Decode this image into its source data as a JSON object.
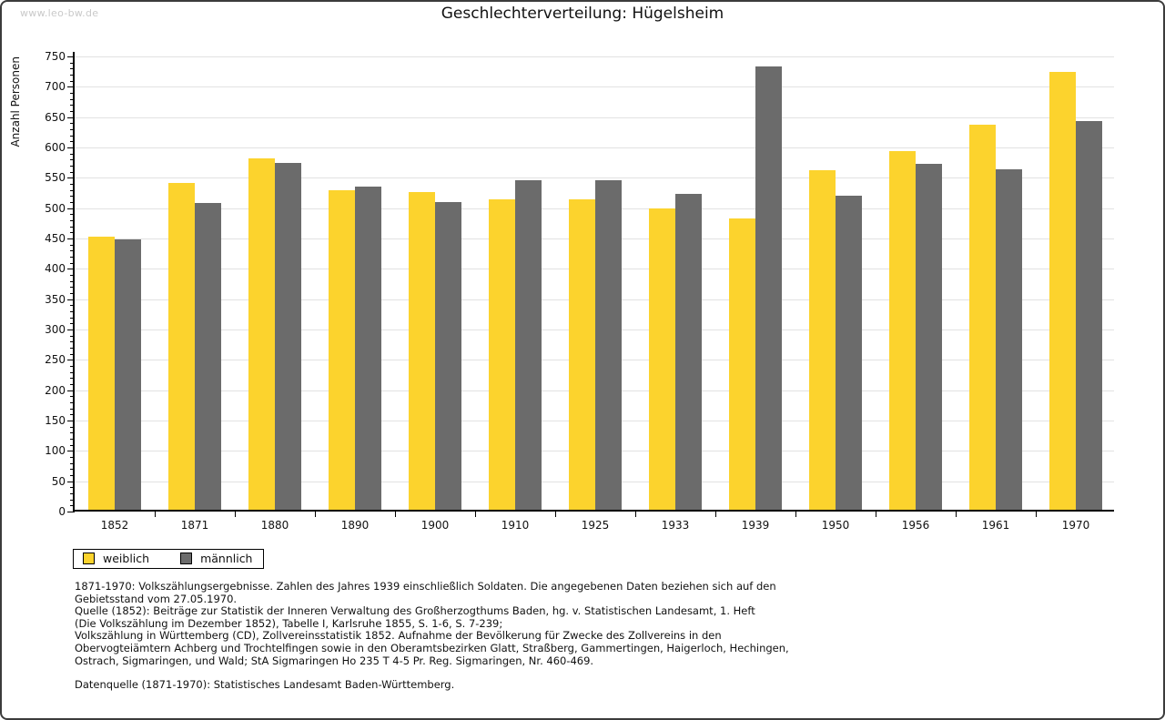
{
  "watermark": "www.leo-bw.de",
  "chart_data": {
    "type": "bar",
    "title": "Geschlechterverteilung: Hügelsheim",
    "xlabel": "",
    "ylabel": "Anzahl Personen",
    "ylim": [
      0,
      750
    ],
    "ytick_step": 50,
    "ytick_minor_step": 10,
    "grid": true,
    "legend_position": "bottom-left",
    "categories": [
      "1852",
      "1871",
      "1880",
      "1890",
      "1900",
      "1910",
      "1925",
      "1933",
      "1939",
      "1950",
      "1956",
      "1961",
      "1970"
    ],
    "series": [
      {
        "name": "weiblich",
        "color": "#fcd32d",
        "values": [
          450,
          538,
          579,
          526,
          524,
          511,
          511,
          496,
          480,
          560,
          591,
          635,
          721
        ]
      },
      {
        "name": "männlich",
        "color": "#6b6b6b",
        "values": [
          446,
          505,
          571,
          532,
          507,
          543,
          543,
          520,
          731,
          517,
          570,
          561,
          640
        ]
      }
    ]
  },
  "footnote_lines": [
    "1871-1970: Volkszählungsergebnisse. Zahlen des Jahres 1939 einschließlich Soldaten. Die angegebenen Daten beziehen sich auf den",
    "Gebietsstand vom 27.05.1970.",
    "Quelle (1852): Beiträge zur Statistik der Inneren Verwaltung des Großherzogthums Baden, hg. v. Statistischen Landesamt, 1. Heft",
    "(Die Volkszählung im Dezember 1852), Tabelle I, Karlsruhe 1855, S. 1-6, S. 7-239;",
    "Volkszählung in Württemberg (CD), Zollvereinsstatistik 1852. Aufnahme der Bevölkerung für Zwecke des Zollvereins in den",
    "Obervogteiämtern Achberg und Trochtelfingen sowie in den Oberamtsbezirken Glatt, Straßberg, Gammertingen, Haigerloch, Hechingen,",
    "Ostrach, Sigmaringen, und Wald; StA Sigmaringen Ho 235 T 4-5 Pr. Reg. Sigmaringen, Nr. 460-469."
  ],
  "datasource_line": "Datenquelle (1871-1970): Statistisches Landesamt Baden-Württemberg."
}
